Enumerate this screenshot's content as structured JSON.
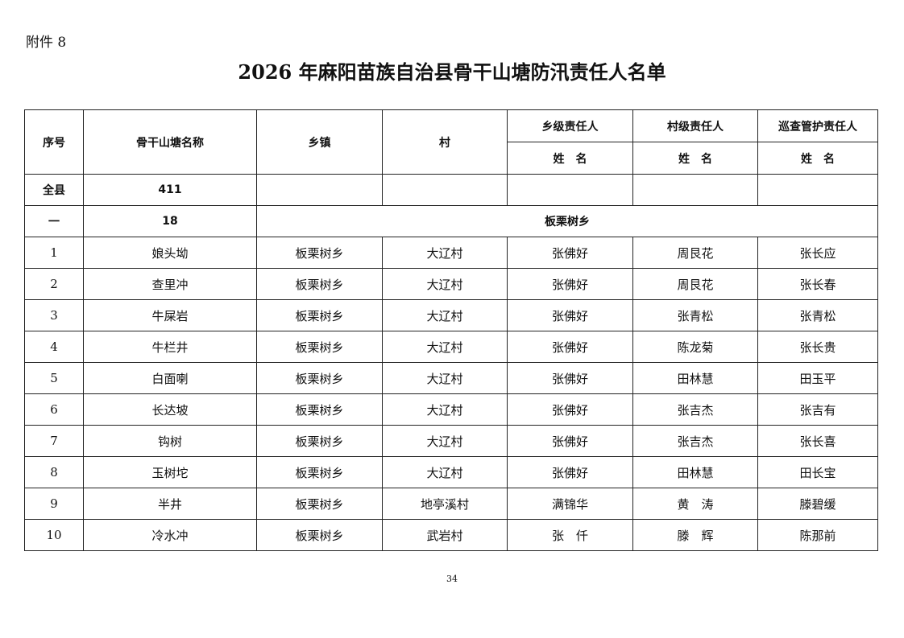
{
  "attachment_label": "附件 8",
  "title": "2026 年麻阳苗族自治县骨干山塘防汛责任人名单",
  "headers": {
    "index": "序号",
    "name": "骨干山塘名称",
    "town": "乡镇",
    "village": "村",
    "town_resp": "乡级责任人",
    "village_resp": "村级责任人",
    "patrol_resp": "巡查管护责任人",
    "sub": "姓　名"
  },
  "county_row": {
    "label": "全县",
    "count": "411"
  },
  "group_row": {
    "label": "一",
    "count": "18",
    "town": "板栗树乡"
  },
  "rows": [
    [
      "1",
      "娘头坳",
      "板栗树乡",
      "大辽村",
      "张佛好",
      "周艮花",
      "张长应"
    ],
    [
      "2",
      "查里冲",
      "板栗树乡",
      "大辽村",
      "张佛好",
      "周艮花",
      "张长春"
    ],
    [
      "3",
      "牛屎岩",
      "板栗树乡",
      "大辽村",
      "张佛好",
      "张青松",
      "张青松"
    ],
    [
      "4",
      "牛栏井",
      "板栗树乡",
      "大辽村",
      "张佛好",
      "陈龙菊",
      "张长贵"
    ],
    [
      "5",
      "白面喇",
      "板栗树乡",
      "大辽村",
      "张佛好",
      "田林慧",
      "田玉平"
    ],
    [
      "6",
      "长达坡",
      "板栗树乡",
      "大辽村",
      "张佛好",
      "张吉杰",
      "张吉有"
    ],
    [
      "7",
      "钩树",
      "板栗树乡",
      "大辽村",
      "张佛好",
      "张吉杰",
      "张长喜"
    ],
    [
      "8",
      "玉树坨",
      "板栗树乡",
      "大辽村",
      "张佛好",
      "田林慧",
      "田长宝"
    ],
    [
      "9",
      "半井",
      "板栗树乡",
      "地亭溪村",
      "满锦华",
      "黄　涛",
      "滕碧缓"
    ],
    [
      "10",
      "冷水冲",
      "板栗树乡",
      "武岩村",
      "张　仟",
      "滕　辉",
      "陈那前"
    ]
  ],
  "page_number": "34"
}
